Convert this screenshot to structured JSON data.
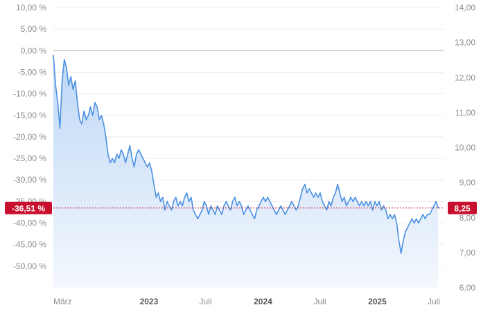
{
  "chart_data": {
    "type": "area",
    "colors": {
      "line": "#4a90e2",
      "fill_top": "#bcd6f6",
      "fill_bottom": "#f4f8fd",
      "grid": "#ececec",
      "zero_line": "#a8a8a8",
      "current_marker": "#c8102e"
    },
    "left_axis": {
      "unit": "%",
      "ylim": [
        -55,
        10
      ],
      "ticks": [
        "10,00 %",
        "5,00 %",
        "0,00 %",
        "-5,00 %",
        "-10,00 %",
        "-15,00 %",
        "-20,00 %",
        "-25,00 %",
        "-30,00 %",
        "-35,00 %",
        "-40,00 %",
        "-45,00 %",
        "-50,00 %"
      ],
      "tick_values": [
        10,
        5,
        0,
        -5,
        -10,
        -15,
        -20,
        -25,
        -30,
        -35,
        -40,
        -45,
        -50
      ]
    },
    "right_axis": {
      "ylim": [
        6,
        14
      ],
      "ticks": [
        "14,00",
        "13,00",
        "12,00",
        "11,00",
        "10,00",
        "9,00",
        "8,00",
        "7,00",
        "6,00"
      ],
      "tick_values": [
        14,
        13,
        12,
        11,
        10,
        9,
        8,
        7,
        6
      ]
    },
    "x_axis": {
      "xlim": [
        "2022-03-01",
        "2025-08-01"
      ],
      "ticks": [
        {
          "label": "März",
          "date": "2022-03-01",
          "bold": false
        },
        {
          "label": "2023",
          "date": "2023-01-01",
          "bold": true
        },
        {
          "label": "Juli",
          "date": "2023-07-01",
          "bold": false
        },
        {
          "label": "2024",
          "date": "2024-01-01",
          "bold": true
        },
        {
          "label": "Juli",
          "date": "2024-07-01",
          "bold": false
        },
        {
          "label": "2025",
          "date": "2025-01-01",
          "bold": true
        },
        {
          "label": "Juli",
          "date": "2025-07-01",
          "bold": false
        }
      ]
    },
    "series": [
      {
        "points": [
          [
            "2022-03-01",
            -1
          ],
          [
            "2022-03-08",
            -8
          ],
          [
            "2022-03-15",
            -12
          ],
          [
            "2022-03-22",
            -18
          ],
          [
            "2022-03-29",
            -7
          ],
          [
            "2022-04-05",
            -2
          ],
          [
            "2022-04-12",
            -4
          ],
          [
            "2022-04-19",
            -8
          ],
          [
            "2022-04-26",
            -6
          ],
          [
            "2022-05-03",
            -9
          ],
          [
            "2022-05-10",
            -7
          ],
          [
            "2022-05-17",
            -12
          ],
          [
            "2022-05-24",
            -16
          ],
          [
            "2022-05-31",
            -17
          ],
          [
            "2022-06-07",
            -14
          ],
          [
            "2022-06-14",
            -16
          ],
          [
            "2022-06-21",
            -15
          ],
          [
            "2022-06-28",
            -13
          ],
          [
            "2022-07-05",
            -15
          ],
          [
            "2022-07-12",
            -12
          ],
          [
            "2022-07-19",
            -13
          ],
          [
            "2022-07-26",
            -16
          ],
          [
            "2022-08-02",
            -15
          ],
          [
            "2022-08-09",
            -17
          ],
          [
            "2022-08-16",
            -20
          ],
          [
            "2022-08-23",
            -24
          ],
          [
            "2022-08-30",
            -26
          ],
          [
            "2022-09-06",
            -25
          ],
          [
            "2022-09-13",
            -26
          ],
          [
            "2022-09-20",
            -24
          ],
          [
            "2022-09-27",
            -25
          ],
          [
            "2022-10-04",
            -23
          ],
          [
            "2022-10-11",
            -24
          ],
          [
            "2022-10-18",
            -26
          ],
          [
            "2022-10-25",
            -24
          ],
          [
            "2022-11-01",
            -22
          ],
          [
            "2022-11-08",
            -25
          ],
          [
            "2022-11-15",
            -27
          ],
          [
            "2022-11-22",
            -24
          ],
          [
            "2022-11-29",
            -23
          ],
          [
            "2022-12-06",
            -24
          ],
          [
            "2022-12-13",
            -25
          ],
          [
            "2022-12-20",
            -26
          ],
          [
            "2022-12-27",
            -27
          ],
          [
            "2023-01-03",
            -26
          ],
          [
            "2023-01-10",
            -28
          ],
          [
            "2023-01-17",
            -31
          ],
          [
            "2023-01-24",
            -34
          ],
          [
            "2023-01-31",
            -33
          ],
          [
            "2023-02-07",
            -35
          ],
          [
            "2023-02-14",
            -34
          ],
          [
            "2023-02-21",
            -37
          ],
          [
            "2023-02-28",
            -35
          ],
          [
            "2023-03-07",
            -36
          ],
          [
            "2023-03-14",
            -37
          ],
          [
            "2023-03-21",
            -35
          ],
          [
            "2023-03-28",
            -34
          ],
          [
            "2023-04-04",
            -36
          ],
          [
            "2023-04-11",
            -35
          ],
          [
            "2023-04-18",
            -36
          ],
          [
            "2023-04-25",
            -34
          ],
          [
            "2023-05-02",
            -33
          ],
          [
            "2023-05-09",
            -35
          ],
          [
            "2023-05-16",
            -34
          ],
          [
            "2023-05-23",
            -37
          ],
          [
            "2023-05-30",
            -38
          ],
          [
            "2023-06-06",
            -39
          ],
          [
            "2023-06-13",
            -38
          ],
          [
            "2023-06-20",
            -37
          ],
          [
            "2023-06-27",
            -35
          ],
          [
            "2023-07-04",
            -36
          ],
          [
            "2023-07-11",
            -38
          ],
          [
            "2023-07-18",
            -36
          ],
          [
            "2023-07-25",
            -37
          ],
          [
            "2023-08-01",
            -38
          ],
          [
            "2023-08-08",
            -36
          ],
          [
            "2023-08-15",
            -37
          ],
          [
            "2023-08-22",
            -38
          ],
          [
            "2023-08-29",
            -36
          ],
          [
            "2023-09-05",
            -35
          ],
          [
            "2023-09-12",
            -36
          ],
          [
            "2023-09-19",
            -37
          ],
          [
            "2023-09-26",
            -35
          ],
          [
            "2023-10-03",
            -34
          ],
          [
            "2023-10-10",
            -36
          ],
          [
            "2023-10-17",
            -35
          ],
          [
            "2023-10-24",
            -36
          ],
          [
            "2023-10-31",
            -38
          ],
          [
            "2023-11-07",
            -37
          ],
          [
            "2023-11-14",
            -36
          ],
          [
            "2023-11-21",
            -37
          ],
          [
            "2023-11-28",
            -38
          ],
          [
            "2023-12-05",
            -39
          ],
          [
            "2023-12-12",
            -37
          ],
          [
            "2023-12-19",
            -36
          ],
          [
            "2023-12-26",
            -35
          ],
          [
            "2024-01-02",
            -34
          ],
          [
            "2024-01-09",
            -35
          ],
          [
            "2024-01-16",
            -34
          ],
          [
            "2024-01-23",
            -35
          ],
          [
            "2024-01-30",
            -36
          ],
          [
            "2024-02-06",
            -37
          ],
          [
            "2024-02-13",
            -38
          ],
          [
            "2024-02-20",
            -37
          ],
          [
            "2024-02-27",
            -36
          ],
          [
            "2024-03-05",
            -37
          ],
          [
            "2024-03-12",
            -38
          ],
          [
            "2024-03-19",
            -37
          ],
          [
            "2024-03-26",
            -36
          ],
          [
            "2024-04-02",
            -35
          ],
          [
            "2024-04-09",
            -36
          ],
          [
            "2024-04-16",
            -37
          ],
          [
            "2024-04-23",
            -36
          ],
          [
            "2024-04-30",
            -34
          ],
          [
            "2024-05-07",
            -32
          ],
          [
            "2024-05-14",
            -31
          ],
          [
            "2024-05-21",
            -33
          ],
          [
            "2024-05-28",
            -32
          ],
          [
            "2024-06-04",
            -33
          ],
          [
            "2024-06-11",
            -34
          ],
          [
            "2024-06-18",
            -33
          ],
          [
            "2024-06-25",
            -34
          ],
          [
            "2024-07-02",
            -33
          ],
          [
            "2024-07-09",
            -35
          ],
          [
            "2024-07-16",
            -36
          ],
          [
            "2024-07-23",
            -37
          ],
          [
            "2024-07-30",
            -35
          ],
          [
            "2024-08-06",
            -36
          ],
          [
            "2024-08-13",
            -34
          ],
          [
            "2024-08-20",
            -33
          ],
          [
            "2024-08-27",
            -31
          ],
          [
            "2024-09-03",
            -33
          ],
          [
            "2024-09-10",
            -35
          ],
          [
            "2024-09-17",
            -34
          ],
          [
            "2024-09-24",
            -36
          ],
          [
            "2024-10-01",
            -35
          ],
          [
            "2024-10-08",
            -34
          ],
          [
            "2024-10-15",
            -35
          ],
          [
            "2024-10-22",
            -34
          ],
          [
            "2024-10-29",
            -35
          ],
          [
            "2024-11-05",
            -36
          ],
          [
            "2024-11-12",
            -35
          ],
          [
            "2024-11-19",
            -36
          ],
          [
            "2024-11-26",
            -35
          ],
          [
            "2024-12-03",
            -36
          ],
          [
            "2024-12-10",
            -35
          ],
          [
            "2024-12-17",
            -37
          ],
          [
            "2024-12-24",
            -35
          ],
          [
            "2024-12-31",
            -36
          ],
          [
            "2025-01-07",
            -35
          ],
          [
            "2025-01-14",
            -37
          ],
          [
            "2025-01-21",
            -36
          ],
          [
            "2025-01-28",
            -37
          ],
          [
            "2025-02-04",
            -39
          ],
          [
            "2025-02-11",
            -38
          ],
          [
            "2025-02-18",
            -39
          ],
          [
            "2025-02-25",
            -38
          ],
          [
            "2025-03-04",
            -40
          ],
          [
            "2025-03-11",
            -44
          ],
          [
            "2025-03-18",
            -47
          ],
          [
            "2025-03-25",
            -44
          ],
          [
            "2025-04-01",
            -42
          ],
          [
            "2025-04-08",
            -41
          ],
          [
            "2025-04-15",
            -40
          ],
          [
            "2025-04-22",
            -39
          ],
          [
            "2025-04-29",
            -40
          ],
          [
            "2025-05-06",
            -39
          ],
          [
            "2025-05-13",
            -40
          ],
          [
            "2025-05-20",
            -39
          ],
          [
            "2025-05-27",
            -38
          ],
          [
            "2025-06-03",
            -39
          ],
          [
            "2025-06-10",
            -38
          ],
          [
            "2025-06-17",
            -38
          ],
          [
            "2025-06-24",
            -37
          ],
          [
            "2025-07-01",
            -36
          ],
          [
            "2025-07-08",
            -35
          ],
          [
            "2025-07-15",
            -36.51
          ]
        ]
      }
    ],
    "current": {
      "left_label": "-36,51 %",
      "left_value": -36.51,
      "right_label": "8,25"
    },
    "grid": true,
    "legend": "none"
  }
}
